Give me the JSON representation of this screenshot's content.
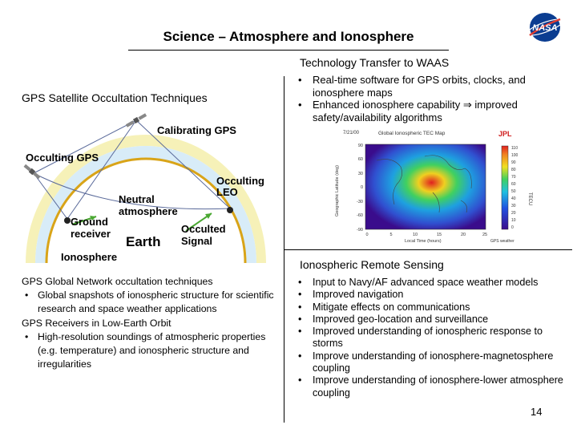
{
  "slide": {
    "title": "Science – Atmosphere and Ionosphere",
    "page_number": "14"
  },
  "logo": {
    "text": "NASA"
  },
  "left": {
    "heading": "GPS Satellite Occultation Techniques",
    "diagram": {
      "calibrating_gps": "Calibrating GPS",
      "occulting_gps": "Occulting GPS",
      "occulting_leo": [
        "Occulting",
        "LEO"
      ],
      "neutral_atmosphere": [
        "Neutral",
        "atmosphere"
      ],
      "ground_receiver": [
        "Ground",
        "receiver"
      ],
      "earth": "Earth",
      "occulted_signal": [
        "Occulted",
        "Signal"
      ],
      "ionosphere": "Ionosphere"
    },
    "paragraphs": [
      {
        "text": "GPS Global Network occultation techniques",
        "bullets": [
          "Global snapshots of ionospheric structure for scientific research and space weather applications"
        ]
      },
      {
        "text": "GPS Receivers in Low-Earth Orbit",
        "bullets": [
          "High-resolution soundings of atmospheric properties (e.g. temperature) and ionospheric structure and irregularities"
        ]
      }
    ]
  },
  "right_top": {
    "heading": "Technology Transfer to WAAS",
    "bullets": [
      "Real-time software for GPS orbits, clocks, and ionosphere maps",
      "Enhanced ionosphere capability ⇒ improved safety/availability algorithms"
    ],
    "map": {
      "title": "Global Ionospheric TEC Map",
      "corner_label": "JPL",
      "ylabel": "Geographic Latitude (deg)",
      "xlabel": "Local Time (hours)",
      "colorbar_label": "TECU",
      "lat_ticks": [
        "90",
        "60",
        "30",
        "0",
        "-30",
        "-60",
        "-90"
      ],
      "lt_ticks": [
        "0",
        "5",
        "10",
        "15",
        "20",
        "25"
      ],
      "colorbar_ticks": [
        "110",
        "100",
        "90",
        "80",
        "70",
        "60",
        "50",
        "40",
        "30",
        "20",
        "10",
        "0"
      ],
      "legend": "GPS weather",
      "colors": {
        "low": "#3a0c8c",
        "mid": "#1ea0e0",
        "high": "#e02020"
      }
    }
  },
  "right_bottom": {
    "heading": "Ionospheric Remote Sensing",
    "bullets": [
      "Input to Navy/AF advanced space weather models",
      "Improved navigation",
      "Mitigate effects on communications",
      "Improved geo-location and surveillance",
      "Improved understanding of ionospheric response to storms",
      "Improve understanding of ionosphere-magnetosphere coupling",
      "Improve understanding of ionosphere-lower atmosphere coupling"
    ]
  }
}
